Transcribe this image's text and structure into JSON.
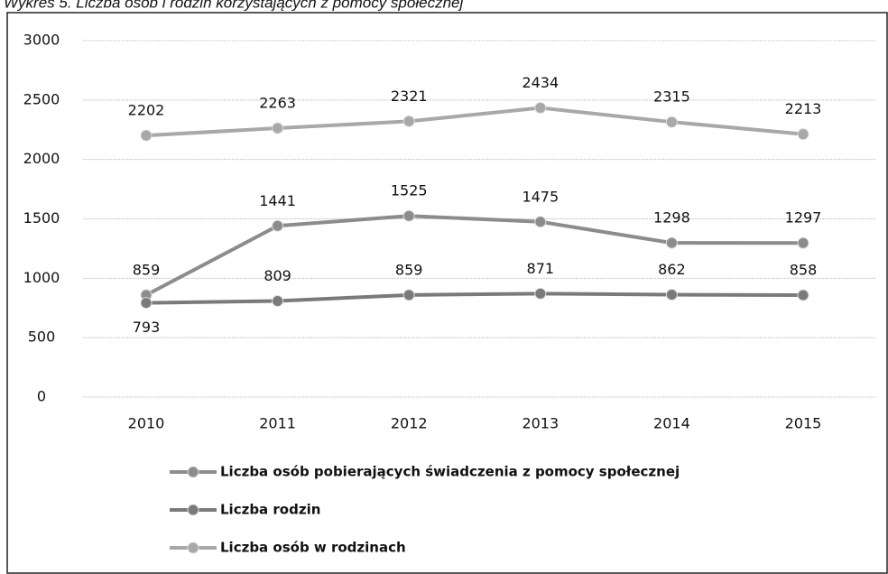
{
  "chart_data": {
    "type": "line",
    "title": "Wykres 5. Liczba osób i rodzin korzystających z pomocy społecznej",
    "categories": [
      "2010",
      "2011",
      "2012",
      "2013",
      "2014",
      "2015"
    ],
    "series": [
      {
        "name": "Liczba osób pobierających świadczenia z pomocy społecznej",
        "color": "#8c8c8c",
        "values": [
          859,
          1441,
          1525,
          1475,
          1298,
          1297
        ]
      },
      {
        "name": "Liczba rodzin",
        "color": "#7a7a7a",
        "values": [
          793,
          809,
          859,
          871,
          862,
          858
        ]
      },
      {
        "name": "Liczba osób w rodzinach",
        "color": "#a8a8a8",
        "values": [
          2202,
          2263,
          2321,
          2434,
          2315,
          2213
        ]
      }
    ],
    "ylim": [
      0,
      3000
    ],
    "yticks": [
      0,
      500,
      1000,
      1500,
      2000,
      2500,
      3000
    ],
    "grid": true
  }
}
